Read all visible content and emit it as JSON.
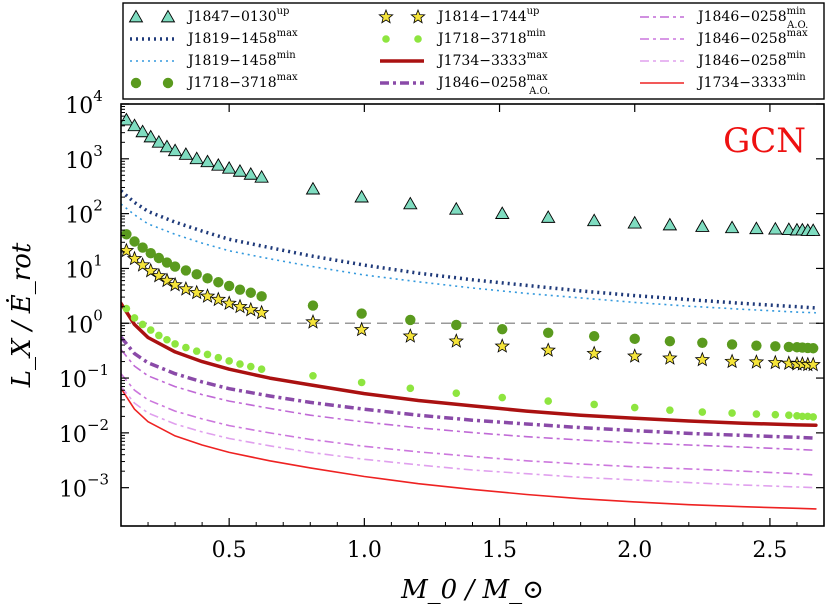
{
  "chart_data": {
    "type": "scatter",
    "annotation": "GCN",
    "xlabel": "M_0 / M_⊙",
    "ylabel": "L_X / Ė_rot",
    "xlim": [
      0.1,
      2.7
    ],
    "ylim": [
      0.0002,
      10000
    ],
    "yscale": "log",
    "xticks": [
      0.5,
      1.0,
      1.5,
      2.0,
      2.5
    ],
    "xtick_labels": [
      "0.5",
      "1.0",
      "1.5",
      "2.0",
      "2.5"
    ],
    "yticks": [
      0.001,
      0.01,
      0.1,
      1,
      10,
      100,
      1000,
      10000
    ],
    "ytick_labels": [
      {
        "base": "10",
        "exp": "−3"
      },
      {
        "base": "10",
        "exp": "−2"
      },
      {
        "base": "10",
        "exp": "−1"
      },
      {
        "base": "10",
        "exp": "0"
      },
      {
        "base": "10",
        "exp": "1"
      },
      {
        "base": "10",
        "exp": "2"
      },
      {
        "base": "10",
        "exp": "3"
      },
      {
        "base": "10",
        "exp": "4"
      }
    ],
    "reference_line": {
      "y": 1,
      "style": "dashed",
      "color": "#999999"
    },
    "legend_position": "top (outside)",
    "series": [
      {
        "name": "J1847−0130",
        "sup": "up",
        "style": "marker-triangle",
        "color": "#7fdcc0",
        "x": [
          0.12,
          0.15,
          0.18,
          0.21,
          0.24,
          0.27,
          0.3,
          0.34,
          0.38,
          0.42,
          0.46,
          0.5,
          0.54,
          0.58,
          0.62,
          0.81,
          0.99,
          1.17,
          1.34,
          1.51,
          1.68,
          1.85,
          2.0,
          2.13,
          2.25,
          2.36,
          2.45,
          2.52,
          2.57,
          2.6,
          2.62,
          2.64,
          2.66
        ],
        "y": [
          5100,
          4000,
          3100,
          2500,
          2000,
          1650,
          1400,
          1200,
          1000,
          880,
          760,
          670,
          590,
          520,
          460,
          280,
          200,
          150,
          120,
          100,
          85,
          74,
          67,
          62,
          58,
          55,
          53,
          52,
          51,
          50,
          50,
          49,
          49
        ]
      },
      {
        "name": "J1819−1458",
        "sup": "max",
        "style": "dotted-thick",
        "color": "#1f3a7a",
        "x": [
          0.1,
          0.15,
          0.2,
          0.3,
          0.4,
          0.5,
          0.65,
          0.8,
          1.0,
          1.2,
          1.4,
          1.6,
          1.8,
          2.0,
          2.2,
          2.4,
          2.6,
          2.67
        ],
        "y": [
          260,
          160,
          110,
          70,
          48,
          34,
          24,
          17,
          11.5,
          8.2,
          6.2,
          4.9,
          3.9,
          3.2,
          2.7,
          2.3,
          2.0,
          1.9
        ]
      },
      {
        "name": "J1819−1458",
        "sup": "min",
        "style": "dotted-thin",
        "color": "#3399dd",
        "x": [
          0.1,
          0.15,
          0.2,
          0.3,
          0.4,
          0.5,
          0.65,
          0.8,
          1.0,
          1.2,
          1.4,
          1.6,
          1.8,
          2.0,
          2.2,
          2.4,
          2.6,
          2.67
        ],
        "y": [
          150,
          95,
          65,
          42,
          29,
          21,
          15,
          11,
          7.6,
          5.7,
          4.4,
          3.5,
          2.9,
          2.4,
          2.05,
          1.8,
          1.6,
          1.55
        ]
      },
      {
        "name": "J1718−3718",
        "sup": "max",
        "style": "marker-circle",
        "color": "#5a9a1e",
        "x": [
          0.12,
          0.15,
          0.18,
          0.21,
          0.24,
          0.27,
          0.3,
          0.34,
          0.38,
          0.42,
          0.46,
          0.5,
          0.54,
          0.58,
          0.62,
          0.81,
          0.99,
          1.17,
          1.34,
          1.51,
          1.68,
          1.85,
          2.0,
          2.13,
          2.25,
          2.36,
          2.45,
          2.52,
          2.57,
          2.6,
          2.62,
          2.64,
          2.66
        ],
        "y": [
          42,
          31,
          24,
          19,
          15.5,
          12.8,
          10.8,
          9.2,
          7.8,
          6.6,
          5.6,
          4.8,
          4.1,
          3.6,
          3.1,
          2.1,
          1.5,
          1.15,
          0.93,
          0.78,
          0.67,
          0.58,
          0.52,
          0.47,
          0.44,
          0.41,
          0.39,
          0.38,
          0.37,
          0.365,
          0.36,
          0.355,
          0.35
        ]
      },
      {
        "name": "J1814−1744",
        "sup": "up",
        "style": "marker-star",
        "color": "#f5e43a",
        "x": [
          0.12,
          0.15,
          0.18,
          0.21,
          0.24,
          0.27,
          0.3,
          0.34,
          0.38,
          0.42,
          0.46,
          0.5,
          0.54,
          0.58,
          0.62,
          0.81,
          0.99,
          1.17,
          1.34,
          1.51,
          1.68,
          1.85,
          2.0,
          2.13,
          2.25,
          2.36,
          2.45,
          2.52,
          2.57,
          2.6,
          2.62,
          2.64,
          2.66
        ],
        "y": [
          21,
          15,
          11.5,
          9.0,
          7.3,
          6.0,
          5.0,
          4.2,
          3.6,
          3.1,
          2.7,
          2.3,
          2.0,
          1.75,
          1.55,
          1.05,
          0.76,
          0.58,
          0.47,
          0.38,
          0.32,
          0.28,
          0.25,
          0.23,
          0.215,
          0.2,
          0.195,
          0.19,
          0.185,
          0.18,
          0.18,
          0.175,
          0.175
        ]
      },
      {
        "name": "J1718−3718",
        "sup": "min",
        "style": "marker-dot",
        "color": "#8ee53f",
        "x": [
          0.12,
          0.15,
          0.18,
          0.21,
          0.24,
          0.27,
          0.3,
          0.34,
          0.38,
          0.42,
          0.46,
          0.5,
          0.54,
          0.58,
          0.62,
          0.81,
          0.99,
          1.17,
          1.34,
          1.51,
          1.68,
          1.85,
          2.0,
          2.13,
          2.25,
          2.36,
          2.45,
          2.52,
          2.57,
          2.6,
          2.62,
          2.64,
          2.66
        ],
        "y": [
          1.85,
          1.25,
          0.95,
          0.75,
          0.6,
          0.5,
          0.42,
          0.36,
          0.31,
          0.27,
          0.235,
          0.205,
          0.18,
          0.162,
          0.145,
          0.11,
          0.083,
          0.065,
          0.053,
          0.044,
          0.038,
          0.033,
          0.029,
          0.026,
          0.024,
          0.023,
          0.022,
          0.0215,
          0.021,
          0.0205,
          0.02,
          0.02,
          0.0195
        ]
      },
      {
        "name": "J1734−3333",
        "sup": "max",
        "style": "solid-thick",
        "color": "#aa1111",
        "x": [
          0.1,
          0.15,
          0.2,
          0.3,
          0.4,
          0.5,
          0.65,
          0.8,
          1.0,
          1.2,
          1.4,
          1.6,
          1.8,
          2.0,
          2.2,
          2.4,
          2.6,
          2.67
        ],
        "y": [
          2.3,
          0.95,
          0.55,
          0.3,
          0.2,
          0.145,
          0.1,
          0.075,
          0.052,
          0.039,
          0.031,
          0.025,
          0.021,
          0.0185,
          0.0165,
          0.015,
          0.014,
          0.0138
        ]
      },
      {
        "name": "J1846−0258",
        "sup": "max",
        "sub": "A.O.",
        "style": "dashdot-thick",
        "color": "#8a4aa8",
        "x": [
          0.1,
          0.15,
          0.2,
          0.3,
          0.4,
          0.5,
          0.65,
          0.8,
          1.0,
          1.2,
          1.4,
          1.6,
          1.8,
          2.0,
          2.2,
          2.4,
          2.6,
          2.67
        ],
        "y": [
          0.56,
          0.28,
          0.19,
          0.12,
          0.085,
          0.064,
          0.047,
          0.036,
          0.027,
          0.021,
          0.017,
          0.0145,
          0.0125,
          0.011,
          0.0098,
          0.009,
          0.0083,
          0.008
        ]
      },
      {
        "name": "J1846−0258",
        "sup": "min",
        "sub": "A.O.",
        "style": "dashdot-thin",
        "color": "#c06ad6",
        "x": [
          0.1,
          0.15,
          0.2,
          0.3,
          0.4,
          0.5,
          0.65,
          0.8,
          1.0,
          1.2,
          1.4,
          1.6,
          1.8,
          2.0,
          2.2,
          2.4,
          2.6,
          2.67
        ],
        "y": [
          0.33,
          0.165,
          0.11,
          0.07,
          0.05,
          0.038,
          0.028,
          0.021,
          0.0158,
          0.0124,
          0.0101,
          0.0085,
          0.0074,
          0.0066,
          0.006,
          0.0055,
          0.005,
          0.0048
        ]
      },
      {
        "name": "J1846−0258",
        "sup": "max",
        "style": "dashdot-thin",
        "color": "#cc77dd",
        "x": [
          0.1,
          0.15,
          0.2,
          0.3,
          0.4,
          0.5,
          0.65,
          0.8,
          1.0,
          1.2,
          1.4,
          1.6,
          1.8,
          2.0,
          2.2,
          2.4,
          2.6,
          2.67
        ],
        "y": [
          0.12,
          0.06,
          0.04,
          0.025,
          0.018,
          0.0136,
          0.01,
          0.0076,
          0.0057,
          0.0045,
          0.0037,
          0.0031,
          0.0027,
          0.0024,
          0.0022,
          0.002,
          0.0018,
          0.0017
        ]
      },
      {
        "name": "J1846−0258",
        "sup": "min",
        "style": "dashdot-thin",
        "color": "#e0a0ee",
        "x": [
          0.1,
          0.15,
          0.2,
          0.3,
          0.4,
          0.5,
          0.65,
          0.8,
          1.0,
          1.2,
          1.4,
          1.6,
          1.8,
          2.0,
          2.2,
          2.4,
          2.6,
          2.67
        ],
        "y": [
          0.07,
          0.035,
          0.023,
          0.0145,
          0.0104,
          0.0079,
          0.0058,
          0.0044,
          0.0033,
          0.0026,
          0.0021,
          0.0018,
          0.00155,
          0.00138,
          0.00124,
          0.00112,
          0.00103,
          0.001
        ]
      },
      {
        "name": "J1734−3333",
        "sup": "min",
        "style": "solid-thin",
        "color": "#ee2222",
        "x": [
          0.1,
          0.15,
          0.2,
          0.3,
          0.4,
          0.5,
          0.65,
          0.8,
          1.0,
          1.2,
          1.4,
          1.6,
          1.8,
          2.0,
          2.2,
          2.4,
          2.6,
          2.67
        ],
        "y": [
          0.065,
          0.027,
          0.016,
          0.0088,
          0.006,
          0.0044,
          0.0031,
          0.0023,
          0.0016,
          0.00118,
          0.00093,
          0.00075,
          0.00063,
          0.00055,
          0.00049,
          0.00045,
          0.00042,
          0.00041
        ]
      }
    ]
  }
}
